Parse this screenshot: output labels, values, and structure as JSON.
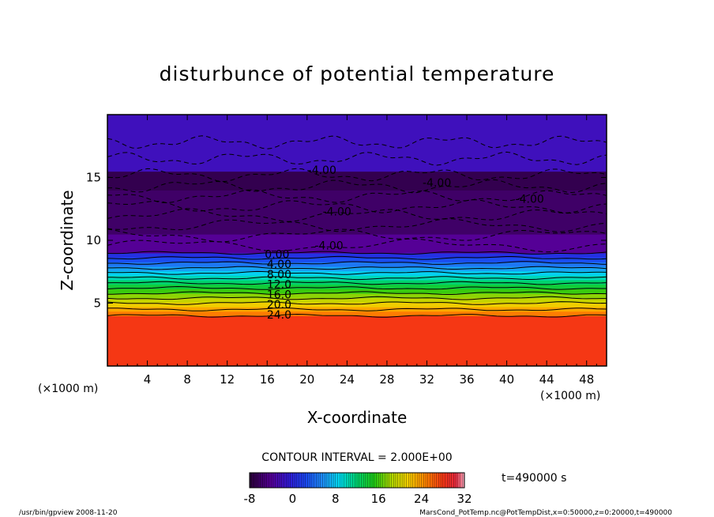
{
  "chart_data": {
    "type": "heatmap",
    "title": "disturbunce of potential temperature",
    "xlabel": "X-coordinate",
    "ylabel": "Z-coordinate",
    "x_unit_left": "(×1000 m)",
    "x_unit_right": "(×1000 m)",
    "xlim": [
      0,
      50
    ],
    "ylim": [
      0,
      20
    ],
    "x_ticks": [
      "4",
      "8",
      "12",
      "16",
      "20",
      "24",
      "28",
      "32",
      "36",
      "40",
      "44",
      "48"
    ],
    "y_ticks": [
      "5",
      "10",
      "15"
    ],
    "x_tick_values": [
      4,
      8,
      12,
      16,
      20,
      24,
      28,
      32,
      36,
      40,
      44,
      48
    ],
    "y_tick_values": [
      5,
      10,
      15
    ],
    "contour_interval_text": "CONTOUR INTERVAL = 2.000E+00",
    "time_text": "t=490000 s",
    "colorbar": {
      "range": [
        -8,
        32
      ],
      "tick_labels": [
        "-8",
        "0",
        "8",
        "16",
        "24",
        "32"
      ],
      "tick_values": [
        -8,
        0,
        8,
        16,
        24,
        32
      ]
    },
    "contour_labels": [
      {
        "text": "-4.00",
        "x": 21.5,
        "z": 15.6
      },
      {
        "text": "-4.00",
        "x": 33.0,
        "z": 14.6
      },
      {
        "text": "-4.00",
        "x": 42.3,
        "z": 13.3
      },
      {
        "text": "-4.00",
        "x": 23.0,
        "z": 12.3
      },
      {
        "text": "-4.00",
        "x": 22.2,
        "z": 9.6
      },
      {
        "text": "0.00",
        "x": 17.0,
        "z": 8.9
      },
      {
        "text": "4.00",
        "x": 17.2,
        "z": 8.1
      },
      {
        "text": "8.00",
        "x": 17.2,
        "z": 7.3
      },
      {
        "text": "12.0",
        "x": 17.2,
        "z": 6.5
      },
      {
        "text": "16.0",
        "x": 17.2,
        "z": 5.7
      },
      {
        "text": "20.0",
        "x": 17.2,
        "z": 4.9
      },
      {
        "text": "24.0",
        "x": 17.2,
        "z": 4.1
      }
    ],
    "field_bands": [
      {
        "z_from": 0.0,
        "z_to": 4.0,
        "value": 28
      },
      {
        "z_from": 4.0,
        "z_to": 9.0,
        "value_bottom": 26,
        "value_top": 0
      },
      {
        "z_from": 9.0,
        "z_to": 10.5,
        "value": -4
      },
      {
        "z_from": 10.5,
        "z_to": 14.0,
        "value": -6
      },
      {
        "z_from": 14.0,
        "z_to": 15.5,
        "value": -7
      },
      {
        "z_from": 15.5,
        "z_to": 20.0,
        "value": -2
      }
    ]
  },
  "footer": {
    "left": "/usr/bin/gpview   2008-11-20",
    "right": "MarsCond_PotTemp.nc@PotTempDist,x=0:50000,z=0:20000,t=490000"
  }
}
